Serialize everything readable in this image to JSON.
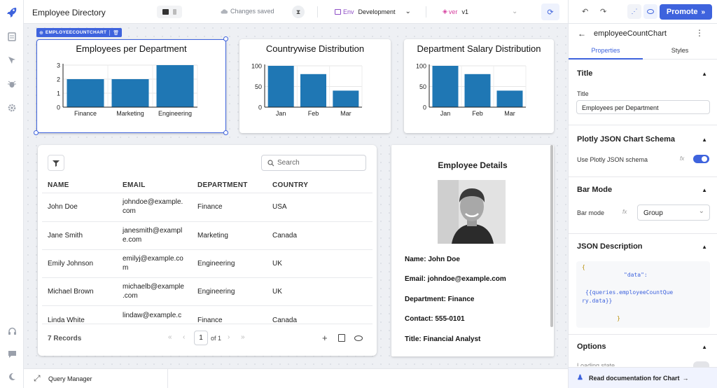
{
  "topbar": {
    "app_title": "Employee Directory",
    "save_status": "Changes saved",
    "env_label": "Env",
    "env_value": "Development",
    "version_label": "ver",
    "version_value": "v1",
    "promote_label": "Promote"
  },
  "selection_badge": "EMPLOYEECOUNTCHART",
  "charts": [
    {
      "chart_data": {
        "type": "bar",
        "title": "Employees per Department",
        "categories": [
          "Finance",
          "Marketing",
          "Engineering"
        ],
        "values": [
          2,
          2,
          3
        ],
        "ylim": [
          0,
          3
        ],
        "yticks": [
          0,
          1,
          2,
          3
        ],
        "grid": true,
        "color": "#1f77b4"
      }
    },
    {
      "chart_data": {
        "type": "bar",
        "title": "Countrywise Distribution",
        "categories": [
          "Jan",
          "Feb",
          "Mar"
        ],
        "values": [
          100,
          80,
          40
        ],
        "ylim": [
          0,
          100
        ],
        "yticks": [
          0,
          50,
          100
        ],
        "grid": true,
        "color": "#1f77b4"
      }
    },
    {
      "chart_data": {
        "type": "bar",
        "title": "Department Salary Distribution",
        "categories": [
          "Jan",
          "Feb",
          "Mar"
        ],
        "values": [
          100,
          80,
          40
        ],
        "ylim": [
          0,
          100
        ],
        "yticks": [
          0,
          50,
          100
        ],
        "grid": true,
        "color": "#1f77b4"
      }
    }
  ],
  "table": {
    "search_placeholder": "Search",
    "columns": [
      "NAME",
      "EMAIL",
      "DEPARTMENT",
      "COUNTRY"
    ],
    "rows": [
      {
        "name": "John Doe",
        "email1": "johndoe@example.",
        "email2": "com",
        "department": "Finance",
        "country": "USA"
      },
      {
        "name": "Jane Smith",
        "email1": "janesmith@exampl",
        "email2": "e.com",
        "department": "Marketing",
        "country": "Canada"
      },
      {
        "name": "Emily Johnson",
        "email1": "emilyj@example.co",
        "email2": "m",
        "department": "Engineering",
        "country": "UK"
      },
      {
        "name": "Michael Brown",
        "email1": "michaelb@example",
        "email2": ".com",
        "department": "Engineering",
        "country": "UK"
      },
      {
        "name": "Linda White",
        "email1": "lindaw@example.c",
        "email2": "",
        "department": "Finance",
        "country": "Canada"
      }
    ],
    "records": "7 Records",
    "page": "1",
    "page_of": "of 1"
  },
  "details": {
    "title": "Employee Details",
    "name": "Name: John Doe",
    "email": "Email: johndoe@example.com",
    "department": "Department: Finance",
    "contact": "Contact: 555-0101",
    "title_line": "Title: Financial Analyst"
  },
  "bottombar": {
    "query_manager": "Query Manager"
  },
  "inspector": {
    "component_name": "employeeCountChart",
    "tabs": [
      "Properties",
      "Styles"
    ],
    "sections": {
      "title": "Title",
      "plotly": "Plotly JSON Chart Schema",
      "bar_mode": "Bar Mode",
      "json_desc": "JSON Description",
      "options": "Options"
    },
    "title_label": "Title",
    "title_value": "Employees per Department",
    "plotly_toggle_label": "Use Plotly JSON schema",
    "plotly_toggle_on": true,
    "bar_mode_label": "Bar mode",
    "bar_mode_value": "Group",
    "fx": "fx",
    "json_lines": [
      "{",
      "\"data\":",
      "{{queries.employeeCountQue",
      "ry.data}}",
      "}"
    ],
    "options_partial": "Loading state",
    "doc_link": "Read documentation for Chart"
  },
  "colors": {
    "accent": "#3e63dd",
    "bar": "#1f77b4",
    "json_key": "#3e63dd"
  }
}
